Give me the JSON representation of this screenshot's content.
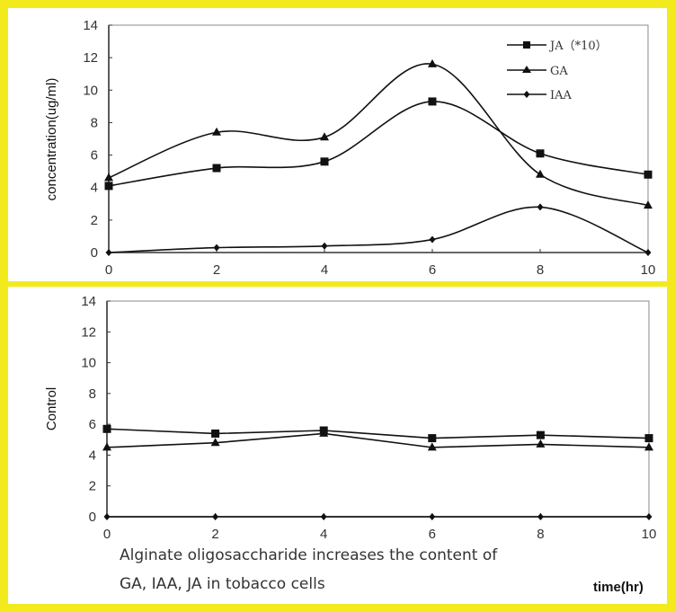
{
  "chart_data": [
    {
      "type": "line",
      "title": "",
      "xlabel": "",
      "ylabel": "concentration(ug/ml)",
      "x": [
        0,
        2,
        4,
        6,
        8,
        10
      ],
      "xticks": [
        "0",
        "2",
        "4",
        "6",
        "8",
        "10"
      ],
      "yticks": [
        "0",
        "2",
        "4",
        "6",
        "8",
        "10",
        "12",
        "14"
      ],
      "xlim": [
        0,
        10
      ],
      "ylim": [
        0,
        14
      ],
      "grid": false,
      "smooth": true,
      "legend_position": "top-right",
      "series": [
        {
          "name": "JA(*10)",
          "marker": "square",
          "values": [
            4.1,
            5.2,
            5.6,
            9.3,
            6.1,
            4.8
          ]
        },
        {
          "name": "GA",
          "marker": "triangle",
          "values": [
            4.6,
            7.4,
            7.1,
            11.6,
            4.8,
            2.9
          ]
        },
        {
          "name": "IAA",
          "marker": "diamond",
          "values": [
            0.0,
            0.3,
            0.4,
            0.8,
            2.8,
            0.0
          ]
        }
      ]
    },
    {
      "type": "line",
      "title": "",
      "xlabel": "time(hr)",
      "ylabel": "Control",
      "x": [
        0,
        2,
        4,
        6,
        8,
        10
      ],
      "xticks": [
        "0",
        "2",
        "4",
        "6",
        "8",
        "10"
      ],
      "yticks": [
        "0",
        "2",
        "4",
        "6",
        "8",
        "10",
        "12",
        "14"
      ],
      "xlim": [
        0,
        10
      ],
      "ylim": [
        0,
        14
      ],
      "grid": false,
      "smooth": false,
      "series": [
        {
          "name": "JA(*10)",
          "marker": "square",
          "values": [
            5.7,
            5.4,
            5.6,
            5.1,
            5.3,
            5.1
          ]
        },
        {
          "name": "GA",
          "marker": "triangle",
          "values": [
            4.5,
            4.8,
            5.4,
            4.5,
            4.7,
            4.5
          ]
        },
        {
          "name": "IAA",
          "marker": "diamond",
          "values": [
            0.0,
            0.0,
            0.0,
            0.0,
            0.0,
            0.0
          ]
        }
      ]
    }
  ],
  "legend": [
    {
      "label": "JA（*10）",
      "marker": "square"
    },
    {
      "label": "GA",
      "marker": "triangle"
    },
    {
      "label": "IAA",
      "marker": "diamond"
    }
  ],
  "caption": {
    "line1": "Alginate oligosaccharide increases the content of",
    "line2": "GA, IAA, JA in tobacco cells"
  },
  "colors": {
    "frame": "#f2ea1d",
    "line": "#111111",
    "axis": "#333333"
  }
}
